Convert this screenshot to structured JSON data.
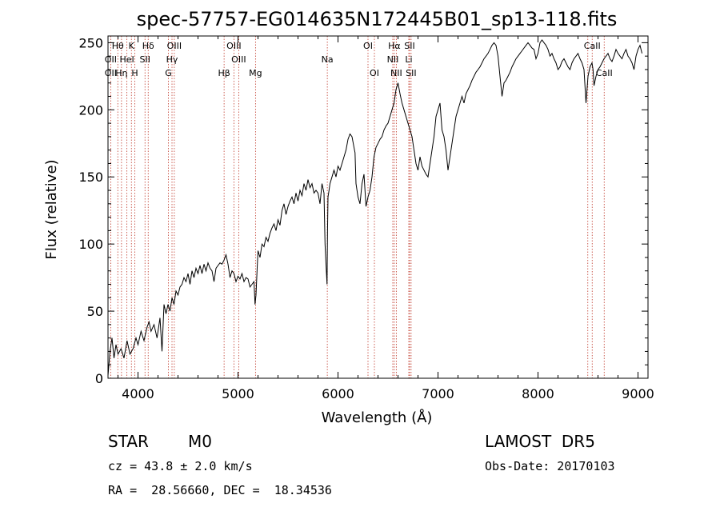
{
  "chart_data": {
    "type": "line",
    "title": "spec-57757-EG014635N172445B01_sp13-118.fits",
    "xlabel": "Wavelength (Å)",
    "ylabel": "Flux (relative)",
    "xlim": [
      3700,
      9100
    ],
    "ylim": [
      0,
      255
    ],
    "xticks": [
      4000,
      5000,
      6000,
      7000,
      8000,
      9000
    ],
    "yticks": [
      0,
      50,
      100,
      150,
      200,
      250
    ],
    "grid": false,
    "series": [
      {
        "x": [
          3700,
          3720,
          3740,
          3760,
          3780,
          3800,
          3830,
          3860,
          3890,
          3920,
          3950,
          3980,
          4000,
          4030,
          4060,
          4090,
          4110,
          4130,
          4160,
          4190,
          4220,
          4240,
          4260,
          4280,
          4300,
          4320,
          4340,
          4360,
          4380,
          4400,
          4420,
          4440,
          4460,
          4480,
          4500,
          4520,
          4540,
          4560,
          4580,
          4600,
          4620,
          4640,
          4660,
          4680,
          4700,
          4720,
          4740,
          4760,
          4780,
          4800,
          4820,
          4840,
          4860,
          4880,
          4900,
          4920,
          4940,
          4960,
          4980,
          5000,
          5020,
          5040,
          5060,
          5080,
          5100,
          5120,
          5140,
          5160,
          5170,
          5180,
          5190,
          5200,
          5220,
          5240,
          5260,
          5280,
          5300,
          5320,
          5340,
          5360,
          5380,
          5400,
          5420,
          5440,
          5460,
          5480,
          5500,
          5520,
          5540,
          5560,
          5580,
          5600,
          5620,
          5640,
          5660,
          5680,
          5700,
          5720,
          5740,
          5760,
          5780,
          5800,
          5820,
          5840,
          5860,
          5870,
          5880,
          5890,
          5895,
          5900,
          5910,
          5920,
          5940,
          5960,
          5980,
          6000,
          6020,
          6040,
          6060,
          6080,
          6100,
          6120,
          6140,
          6160,
          6170,
          6180,
          6200,
          6220,
          6240,
          6260,
          6280,
          6300,
          6320,
          6340,
          6360,
          6380,
          6400,
          6420,
          6440,
          6460,
          6480,
          6500,
          6520,
          6540,
          6560,
          6570,
          6580,
          6600,
          6620,
          6640,
          6660,
          6680,
          6700,
          6720,
          6740,
          6760,
          6780,
          6800,
          6820,
          6840,
          6860,
          6880,
          6900,
          6920,
          6940,
          6960,
          6980,
          7000,
          7020,
          7040,
          7060,
          7080,
          7100,
          7120,
          7140,
          7160,
          7180,
          7200,
          7220,
          7240,
          7260,
          7280,
          7300,
          7320,
          7340,
          7360,
          7380,
          7400,
          7420,
          7440,
          7460,
          7480,
          7500,
          7520,
          7540,
          7560,
          7580,
          7600,
          7620,
          7640,
          7650,
          7660,
          7680,
          7700,
          7720,
          7740,
          7760,
          7780,
          7800,
          7820,
          7840,
          7860,
          7880,
          7900,
          7920,
          7940,
          7960,
          7980,
          8000,
          8020,
          8040,
          8060,
          8080,
          8100,
          8120,
          8140,
          8160,
          8180,
          8200,
          8220,
          8240,
          8260,
          8280,
          8300,
          8320,
          8340,
          8360,
          8380,
          8400,
          8420,
          8440,
          8460,
          8480,
          8500,
          8520,
          8540,
          8550,
          8560,
          8580,
          8600,
          8620,
          8640,
          8660,
          8680,
          8700,
          8720,
          8740,
          8760,
          8780,
          8800,
          8820,
          8840,
          8860,
          8880,
          8900,
          8920,
          8940,
          8960,
          8980,
          9000,
          9020,
          9040
        ],
        "y": [
          2,
          20,
          30,
          15,
          25,
          18,
          22,
          15,
          28,
          18,
          22,
          30,
          25,
          35,
          28,
          38,
          42,
          35,
          40,
          30,
          45,
          20,
          55,
          48,
          55,
          50,
          60,
          55,
          65,
          62,
          68,
          70,
          75,
          72,
          78,
          70,
          80,
          75,
          82,
          78,
          84,
          78,
          85,
          80,
          86,
          82,
          80,
          72,
          82,
          84,
          86,
          85,
          88,
          92,
          85,
          75,
          80,
          78,
          72,
          76,
          74,
          78,
          72,
          75,
          74,
          68,
          70,
          72,
          55,
          62,
          80,
          95,
          90,
          100,
          98,
          105,
          102,
          108,
          112,
          115,
          110,
          118,
          114,
          125,
          130,
          122,
          128,
          132,
          135,
          130,
          138,
          132,
          140,
          136,
          145,
          140,
          148,
          142,
          145,
          138,
          140,
          138,
          130,
          145,
          138,
          100,
          85,
          70,
          110,
          135,
          140,
          145,
          150,
          155,
          150,
          158,
          155,
          160,
          165,
          170,
          178,
          182,
          180,
          172,
          168,
          145,
          135,
          130,
          145,
          152,
          128,
          135,
          140,
          150,
          165,
          172,
          175,
          178,
          180,
          185,
          188,
          190,
          195,
          200,
          205,
          210,
          215,
          220,
          212,
          205,
          200,
          195,
          190,
          185,
          180,
          170,
          160,
          155,
          165,
          158,
          155,
          152,
          150,
          160,
          170,
          180,
          195,
          200,
          205,
          185,
          180,
          170,
          155,
          165,
          175,
          185,
          195,
          200,
          205,
          210,
          205,
          212,
          215,
          218,
          222,
          225,
          228,
          230,
          232,
          235,
          238,
          240,
          242,
          245,
          248,
          250,
          248,
          240,
          225,
          210,
          215,
          220,
          222,
          225,
          228,
          232,
          235,
          238,
          240,
          242,
          244,
          246,
          248,
          250,
          248,
          246,
          245,
          238,
          242,
          250,
          252,
          250,
          248,
          245,
          240,
          242,
          238,
          235,
          230,
          232,
          236,
          238,
          235,
          232,
          230,
          235,
          238,
          240,
          242,
          238,
          235,
          230,
          205,
          225,
          232,
          235,
          230,
          218,
          225,
          230,
          232,
          235,
          238,
          240,
          242,
          238,
          236,
          240,
          245,
          242,
          240,
          238,
          242,
          245,
          240,
          238,
          235,
          230,
          240,
          245,
          248,
          242
        ]
      }
    ],
    "line_markers": [
      {
        "label": "Hθ",
        "x": 3798,
        "row": 1
      },
      {
        "label": "K",
        "x": 3934,
        "row": 1
      },
      {
        "label": "Hδ",
        "x": 4102,
        "row": 1
      },
      {
        "label": "OIII",
        "x": 4363,
        "row": 1
      },
      {
        "label": "OIII",
        "x": 4959,
        "row": 1
      },
      {
        "label": "OI",
        "x": 6300,
        "row": 1
      },
      {
        "label": "Hα",
        "x": 6563,
        "row": 1
      },
      {
        "label": "SII",
        "x": 6716,
        "row": 1
      },
      {
        "label": "CaII",
        "x": 8542,
        "row": 1
      },
      {
        "label": "OII",
        "x": 3727,
        "row": 2
      },
      {
        "label": "HeI",
        "x": 3889,
        "row": 2
      },
      {
        "label": "SII",
        "x": 4070,
        "row": 2
      },
      {
        "label": "Hγ",
        "x": 4340,
        "row": 2
      },
      {
        "label": "OIII",
        "x": 5007,
        "row": 2
      },
      {
        "label": "Na",
        "x": 5893,
        "row": 2
      },
      {
        "label": "NII",
        "x": 6548,
        "row": 2
      },
      {
        "label": "Li",
        "x": 6708,
        "row": 2
      },
      {
        "label": "OII",
        "x": 3727,
        "row": 3
      },
      {
        "label": "Hη",
        "x": 3835,
        "row": 3
      },
      {
        "label": "H",
        "x": 3968,
        "row": 3
      },
      {
        "label": "G",
        "x": 4304,
        "row": 3
      },
      {
        "label": "Hβ",
        "x": 4861,
        "row": 3
      },
      {
        "label": "Mg",
        "x": 5175,
        "row": 3
      },
      {
        "label": "OI",
        "x": 6364,
        "row": 3
      },
      {
        "label": "NII",
        "x": 6583,
        "row": 3
      },
      {
        "label": "SII",
        "x": 6731,
        "row": 3
      },
      {
        "label": "CaII",
        "x": 8662,
        "row": 3
      }
    ],
    "marker_lines": [
      3727,
      3798,
      3835,
      3889,
      3934,
      3968,
      4070,
      4102,
      4304,
      4340,
      4363,
      4861,
      4959,
      5007,
      5175,
      5893,
      6300,
      6364,
      6548,
      6563,
      6583,
      6708,
      6716,
      6731,
      8498,
      8542,
      8662
    ],
    "marker_color": "#c0392b",
    "line_color": "#000000"
  },
  "info": {
    "object_type": "STAR",
    "subclass": "M0",
    "survey": "LAMOST  DR5",
    "redshift": "cz = 43.8 ± 2.0 km/s",
    "obs_date": "Obs-Date: 20170103",
    "coords": "RA =  28.56660, DEC =  18.34536"
  }
}
